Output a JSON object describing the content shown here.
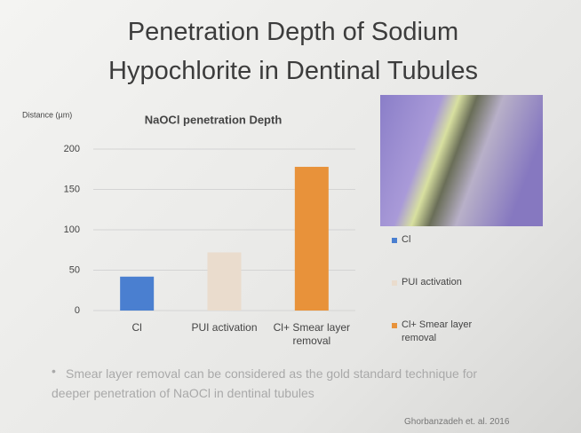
{
  "slide": {
    "title": "Penetration Depth of Sodium Hypochlorite in Dentinal Tubules",
    "bullet": "Smear layer removal can be considered as the gold standard technique for deeper penetration of NaOCl in dentinal tubules",
    "citation": "Ghorbanzadeh et. al. 2016"
  },
  "chart_data": {
    "type": "bar",
    "title": "NaOCl penetration Depth",
    "y_label": "Distance (µm)",
    "categories": [
      "Cl",
      "PUI activation",
      "Cl+ Smear layer removal"
    ],
    "values": [
      42,
      72,
      178
    ],
    "colors": [
      "#4a7fd0",
      "#eadccd",
      "#e8923a"
    ],
    "ylim": [
      0,
      200
    ],
    "yticks": [
      0,
      50,
      100,
      150,
      200
    ],
    "grid": true,
    "legend": "right"
  }
}
